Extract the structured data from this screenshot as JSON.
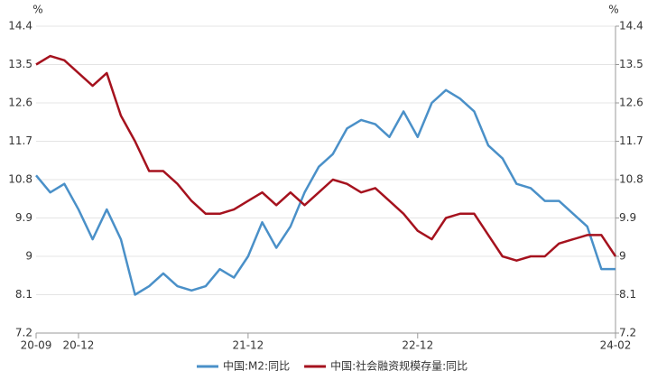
{
  "chart_data": {
    "type": "line",
    "y_label": "%",
    "y2_label": "%",
    "categories": [
      "20-09",
      null,
      null,
      "20-12",
      null,
      null,
      null,
      null,
      null,
      null,
      null,
      null,
      null,
      null,
      null,
      "21-12",
      null,
      null,
      null,
      null,
      null,
      null,
      null,
      null,
      null,
      null,
      null,
      "22-12",
      null,
      null,
      null,
      null,
      null,
      null,
      null,
      null,
      null,
      null,
      null,
      null,
      null,
      "24-02"
    ],
    "series": [
      {
        "name": "中国:M2:同比",
        "color": "#4a90c8",
        "values": [
          10.9,
          10.5,
          10.7,
          10.1,
          9.4,
          10.1,
          9.4,
          8.1,
          8.3,
          8.6,
          8.3,
          8.2,
          8.3,
          8.7,
          8.5,
          9.0,
          9.8,
          9.2,
          9.7,
          10.5,
          11.1,
          11.4,
          12.0,
          12.2,
          12.1,
          11.8,
          12.4,
          11.8,
          12.6,
          12.9,
          12.7,
          12.4,
          11.6,
          11.3,
          10.7,
          10.6,
          10.3,
          10.3,
          10.0,
          9.7,
          8.7,
          8.7
        ]
      },
      {
        "name": "中国:社会融资规模存量:同比",
        "color": "#a5121e",
        "values": [
          13.5,
          13.7,
          13.6,
          13.3,
          13.0,
          13.3,
          12.3,
          11.7,
          11.0,
          11.0,
          10.7,
          10.3,
          10.0,
          10.0,
          10.1,
          10.3,
          10.5,
          10.2,
          10.5,
          10.2,
          10.5,
          10.8,
          10.7,
          10.5,
          10.6,
          10.3,
          10.0,
          9.6,
          9.4,
          9.9,
          10.0,
          10.0,
          9.5,
          9.0,
          8.9,
          9.0,
          9.0,
          9.3,
          9.4,
          9.5,
          9.5,
          9.0
        ]
      }
    ],
    "ylim": [
      7.2,
      14.4
    ],
    "yticks": [
      7.2,
      8.1,
      9,
      9.9,
      10.8,
      11.7,
      12.6,
      13.5,
      14.4
    ],
    "y2lim": [
      7.2,
      14.4
    ],
    "y2ticks": [
      7.2,
      8.1,
      9,
      9.9,
      10.8,
      11.7,
      12.6,
      13.5,
      14.4
    ],
    "grid": true,
    "legend": "bottom"
  }
}
